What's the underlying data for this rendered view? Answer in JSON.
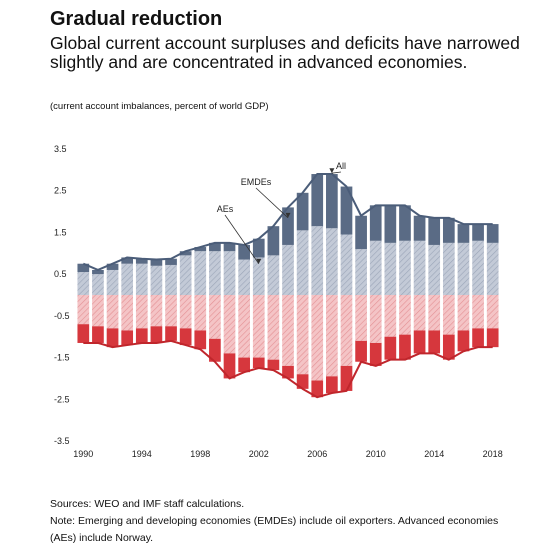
{
  "header": {
    "title": "Gradual reduction",
    "subtitle": "Global current account surpluses and deficits have narrowed slightly and are concentrated in advanced economies.",
    "units": "(current account imbalances, percent of world GDP)"
  },
  "footer": {
    "sources": "Sources: WEO and IMF staff calculations.",
    "note": "Note: Emerging and developing economies (EMDEs) include oil exporters. Advanced economies (AEs) include Norway."
  },
  "colors": {
    "surplus_emde": "#5a6b85",
    "surplus_ae": "#b7bfcd",
    "deficit_emde": "#d6373d",
    "deficit_ae": "#f0b8ba",
    "line": "#4b5d79"
  },
  "chart_data": {
    "type": "bar",
    "stacked": true,
    "x": [
      1990,
      1991,
      1992,
      1993,
      1994,
      1995,
      1996,
      1997,
      1998,
      1999,
      2000,
      2001,
      2002,
      2003,
      2004,
      2005,
      2006,
      2007,
      2008,
      2009,
      2010,
      2011,
      2012,
      2013,
      2014,
      2015,
      2016,
      2017,
      2018
    ],
    "x_tick_labels": [
      "1990",
      "1994",
      "1998",
      "2002",
      "2006",
      "2010",
      "2014",
      "2018"
    ],
    "ylim": [
      -3.5,
      3.5
    ],
    "y_ticks": [
      "3.5",
      "2.5",
      "1.5",
      "0.5",
      "-0.5",
      "-1.5",
      "-2.5",
      "-3.5"
    ],
    "series": [
      {
        "name": "AEs",
        "kind": "surplus",
        "values": [
          0.55,
          0.5,
          0.6,
          0.75,
          0.75,
          0.7,
          0.72,
          0.95,
          1.05,
          1.05,
          1.05,
          0.85,
          0.9,
          0.95,
          1.2,
          1.55,
          1.65,
          1.6,
          1.45,
          1.1,
          1.3,
          1.25,
          1.3,
          1.3,
          1.2,
          1.25,
          1.25,
          1.3,
          1.25
        ]
      },
      {
        "name": "EMDEs",
        "kind": "surplus",
        "values": [
          0.2,
          0.1,
          0.15,
          0.15,
          0.12,
          0.15,
          0.15,
          0.1,
          0.1,
          0.2,
          0.2,
          0.35,
          0.45,
          0.7,
          0.9,
          0.9,
          1.25,
          1.3,
          1.15,
          0.8,
          0.85,
          0.9,
          0.85,
          0.6,
          0.65,
          0.6,
          0.45,
          0.4,
          0.45
        ]
      },
      {
        "name": "AEs",
        "kind": "deficit",
        "values": [
          -0.7,
          -0.75,
          -0.8,
          -0.85,
          -0.8,
          -0.75,
          -0.75,
          -0.8,
          -0.85,
          -1.05,
          -1.4,
          -1.5,
          -1.5,
          -1.55,
          -1.7,
          -1.9,
          -2.05,
          -1.95,
          -1.7,
          -1.1,
          -1.15,
          -1.0,
          -0.95,
          -0.85,
          -0.85,
          -0.95,
          -0.85,
          -0.8,
          -0.8
        ]
      },
      {
        "name": "EMDEs",
        "kind": "deficit",
        "values": [
          -0.45,
          -0.4,
          -0.45,
          -0.35,
          -0.35,
          -0.4,
          -0.35,
          -0.4,
          -0.45,
          -0.55,
          -0.6,
          -0.35,
          -0.25,
          -0.25,
          -0.3,
          -0.35,
          -0.4,
          -0.4,
          -0.6,
          -0.5,
          -0.55,
          -0.55,
          -0.6,
          -0.55,
          -0.55,
          -0.6,
          -0.5,
          -0.45,
          -0.45
        ]
      }
    ],
    "line": {
      "name": "All",
      "values": [
        0.75,
        0.6,
        0.75,
        0.9,
        0.87,
        0.85,
        0.87,
        1.05,
        1.15,
        1.25,
        1.25,
        1.2,
        1.35,
        1.65,
        2.1,
        2.45,
        2.9,
        2.9,
        2.6,
        1.9,
        2.15,
        2.15,
        2.15,
        1.9,
        1.85,
        1.85,
        1.7,
        1.7,
        1.7
      ]
    },
    "annotations": [
      "All",
      "EMDEs",
      "AEs"
    ]
  }
}
